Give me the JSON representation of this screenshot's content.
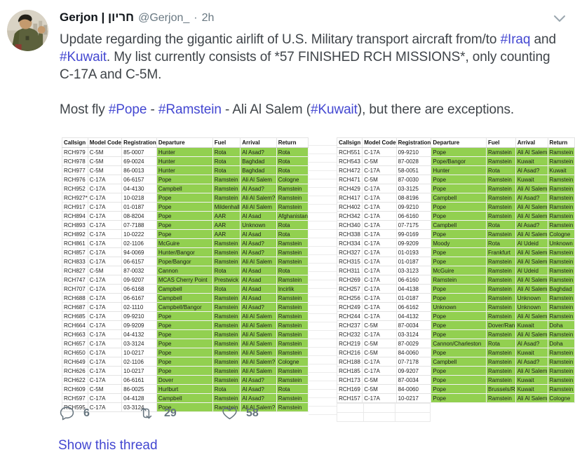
{
  "tweet": {
    "name": "Gerjon | חריון",
    "handle": "@Gerjon_",
    "separator": "·",
    "time": "2h",
    "paragraphs": [
      [
        {
          "text": "Update regarding the gigantic airlift of U.S. Military transport aircraft from/to "
        },
        {
          "text": "#Iraq",
          "link": true
        },
        {
          "text": " and "
        },
        {
          "text": "#Kuwait",
          "link": true
        },
        {
          "text": ". My list currently consists of *57 FINISHED RCH MISSIONS*, only counting C-17A and C-5M."
        }
      ],
      [
        {
          "text": "Most fly "
        },
        {
          "text": "#Pope",
          "link": true
        },
        {
          "text": " - "
        },
        {
          "text": "#Ramstein",
          "link": true
        },
        {
          "text": " - Ali Al Salem ("
        },
        {
          "text": "#Kuwait",
          "link": true
        },
        {
          "text": "), but there are exceptions."
        }
      ]
    ]
  },
  "table": {
    "headers": [
      "Callsign",
      "Model Code",
      "Registration",
      "Departure",
      "Fuel",
      "Arrival",
      "Return"
    ],
    "highlight_color": "#92d050",
    "left_rows": [
      [
        "RCH979",
        "C-5M",
        "85-0007",
        "Hunter",
        "Rota",
        "Al Asad?",
        "Rota"
      ],
      [
        "RCH978",
        "C-5M",
        "69-0024",
        "Hunter",
        "Rota",
        "Baghdad",
        "Rota"
      ],
      [
        "RCH977",
        "C-5M",
        "86-0013",
        "Hunter",
        "Rota",
        "Baghdad",
        "Rota"
      ],
      [
        "RCH976",
        "C-17A",
        "06-6157",
        "Pope",
        "Ramstein",
        "Ali Al Salem",
        "Cologne"
      ],
      [
        "RCH952",
        "C-17A",
        "04-4130",
        "Campbell",
        "Ramstein",
        "Al Asad?",
        "Ramstein"
      ],
      [
        "RCH927*",
        "C-17A",
        "10-0218",
        "Pope",
        "Ramstein",
        "Ali Al Salem?",
        "Ramstein"
      ],
      [
        "RCH917",
        "C-17A",
        "01-0187",
        "Pope",
        "Mildenhall",
        "Ali Al Salem",
        "Ramstein"
      ],
      [
        "RCH894",
        "C-17A",
        "08-8204",
        "Pope",
        "AAR",
        "Al Asad",
        "Afghanistan"
      ],
      [
        "RCH893",
        "C-17A",
        "07-7188",
        "Pope",
        "AAR",
        "Unknown",
        "Rota"
      ],
      [
        "RCH892",
        "C-17A",
        "10-0222",
        "Pope",
        "AAR",
        "Al Asad",
        "Rota"
      ],
      [
        "RCH861",
        "C-17A",
        "02-1106",
        "McGuire",
        "Ramstein",
        "Al Asad?",
        "Ramstein"
      ],
      [
        "RCH857",
        "C-17A",
        "94-0069",
        "Hunter/Bangor",
        "Ramstein",
        "Al Asad?",
        "Ramstein"
      ],
      [
        "RCH833",
        "C-17A",
        "06-6157",
        "Pope/Bangor",
        "Ramstein",
        "Ali Al Salem",
        "Ramstein"
      ],
      [
        "RCH827",
        "C-5M",
        "87-0032",
        "Cannon",
        "Rota",
        "Al Asad",
        "Rota"
      ],
      [
        "RCH747",
        "C-17A",
        "09-9207",
        "MCAS Cherry Point",
        "Prestwick",
        "Al Asad",
        "Ramstein"
      ],
      [
        "RCH707",
        "C-17A",
        "06-6168",
        "Campbell",
        "Rota",
        "Al Asad",
        "Incirlik"
      ],
      [
        "RCH688",
        "C-17A",
        "06-6167",
        "Campbell",
        "Ramstein",
        "Al Asad",
        "Ramstein"
      ],
      [
        "RCH687",
        "C-17A",
        "02-1110",
        "Campbell/Bangor",
        "Ramstein",
        "Al Asad?",
        "Ramstein"
      ],
      [
        "RCH685",
        "C-17A",
        "09-9210",
        "Pope",
        "Ramstein",
        "Ali Al Salem",
        "Ramstein"
      ],
      [
        "RCH664",
        "C-17A",
        "09-9209",
        "Pope",
        "Ramstein",
        "Ali Al Salem",
        "Ramstein"
      ],
      [
        "RCH663",
        "C-17A",
        "04-4132",
        "Pope",
        "Ramstein",
        "Ali Al Salem",
        "Ramstein"
      ],
      [
        "RCH657",
        "C-17A",
        "03-3124",
        "Pope",
        "Ramstein",
        "Ali Al Salem",
        "Ramstein"
      ],
      [
        "RCH650",
        "C-17A",
        "10-0217",
        "Pope",
        "Ramstein",
        "Ali Al Salem",
        "Ramstein"
      ],
      [
        "RCH649",
        "C-17A",
        "02-1106",
        "Pope",
        "Ramstein",
        "Ali Al Salem?",
        "Cologne"
      ],
      [
        "RCH626",
        "C-17A",
        "10-0217",
        "Pope",
        "Ramstein",
        "Ali Al Salem",
        "Ramstein"
      ],
      [
        "RCH622",
        "C-17A",
        "06-6161",
        "Dover",
        "Ramstein",
        "Al Asad?",
        "Ramstein"
      ],
      [
        "RCH609",
        "C-5M",
        "86-0025",
        "Hurlburt",
        "Rota",
        "Al Asad?",
        "Rota"
      ],
      [
        "RCH597",
        "C-17A",
        "04-4128",
        "Campbell",
        "Ramstein",
        "Al Asad?",
        "Ramstein"
      ],
      [
        "RCH595",
        "C-17A",
        "03-3124",
        "Pope",
        "Ramstein",
        "Ali Al Salem?",
        "Ramstein"
      ]
    ],
    "right_rows": [
      [
        "RCH551",
        "C-17A",
        "09-9210",
        "Pope",
        "Ramstein",
        "Ali Al Salem",
        "Ramstein"
      ],
      [
        "RCH543",
        "C-5M",
        "87-0028",
        "Pope/Bangor",
        "Ramstein",
        "Kuwait",
        "Ramstein"
      ],
      [
        "RCH472",
        "C-17A",
        "58-0051",
        "Hunter",
        "Rota",
        "Al Asad?",
        "Kuwait"
      ],
      [
        "RCH471",
        "C-5M",
        "87-0030",
        "Pope",
        "Ramstein",
        "Kuwait",
        "Ramstein"
      ],
      [
        "RCH429",
        "C-17A",
        "03-3125",
        "Pope",
        "Ramstein",
        "Ali Al Salem",
        "Ramstein"
      ],
      [
        "RCH417",
        "C-17A",
        "08-8196",
        "Campbell",
        "Ramstein",
        "Al Asad?",
        "Ramstein"
      ],
      [
        "RCH402",
        "C-17A",
        "09-9210",
        "Pope",
        "Ramstein",
        "Ali Al Salem",
        "Ramstein"
      ],
      [
        "RCH342",
        "C-17A",
        "06-6160",
        "Pope",
        "Ramstein",
        "Ali Al Salem",
        "Ramstein"
      ],
      [
        "RCH340",
        "C-17A",
        "07-7175",
        "Campbell",
        "Rota",
        "Al Asad?",
        "Ramstein"
      ],
      [
        "RCH338",
        "C-17A",
        "99-0169",
        "Pope",
        "Ramstein",
        "Ali Al Salem",
        "Cologne"
      ],
      [
        "RCH334",
        "C-17A",
        "09-9209",
        "Moody",
        "Rota",
        "Al Udeid",
        "Unknown"
      ],
      [
        "RCH327",
        "C-17A",
        "01-0193",
        "Pope",
        "Frankfurt",
        "Ali Al Salem",
        "Ramstein"
      ],
      [
        "RCH315",
        "C-17A",
        "01-0187",
        "Pope",
        "Ramstein",
        "Ali Al Salem",
        "Ramstein"
      ],
      [
        "RCH311",
        "C-17A",
        "03-3123",
        "McGuire",
        "Ramstein",
        "Al Udeid",
        "Ramstein"
      ],
      [
        "RCH269",
        "C-17A",
        "06-6160",
        "Ramstein",
        "Ramstein",
        "Ali Al Salem",
        "Ramstein"
      ],
      [
        "RCH257",
        "C-17A",
        "04-4138",
        "Pope",
        "Ramstein",
        "Ali Al Salem",
        "Baghdad"
      ],
      [
        "RCH256",
        "C-17A",
        "01-0187",
        "Pope",
        "Ramstein",
        "Unknown",
        "Ramstein"
      ],
      [
        "RCH249",
        "C-17A",
        "06-6162",
        "Unknown",
        "Ramstein",
        "Unknown",
        "Ramstein"
      ],
      [
        "RCH244",
        "C-17A",
        "04-4132",
        "Pope",
        "Ramstein",
        "Ali Al Salem",
        "Ramstein"
      ],
      [
        "RCH237",
        "C-5M",
        "87-0034",
        "Pope",
        "Dover/Ran",
        "Kuwait",
        "Doha"
      ],
      [
        "RCH232",
        "C-17A",
        "03-3124",
        "Pope",
        "Ramstein",
        "Ali Al Salem",
        "Ramstein"
      ],
      [
        "RCH219",
        "C-5M",
        "87-0029",
        "Cannon/Charleston",
        "Rota",
        "Al Asad?",
        "Doha"
      ],
      [
        "RCH216",
        "C-5M",
        "84-0060",
        "Pope",
        "Ramstein",
        "Kuwait",
        "Ramstein"
      ],
      [
        "RCH188",
        "C-17A",
        "07-7178",
        "Campbell",
        "Ramstein",
        "Al Asad?",
        "Ramstein"
      ],
      [
        "RCH185",
        "C-17A",
        "09-9207",
        "Pope",
        "Ramstein",
        "Ali Al Salem",
        "Ramstein"
      ],
      [
        "RCH173",
        "C-5M",
        "87-0034",
        "Pope",
        "Ramstein",
        "Kuwait",
        "Ramstein"
      ],
      [
        "RCH169",
        "C-5M",
        "84-0060",
        "Pope",
        "Brussels/R",
        "Kuwait",
        "Ramstein"
      ],
      [
        "RCH157",
        "C-17A",
        "10-0217",
        "Pope",
        "Ramstein",
        "Ali Al Salem",
        "Cologne"
      ]
    ]
  },
  "engagement": {
    "replies": "6",
    "retweets": "29",
    "likes": "58"
  },
  "show_thread_label": "Show this thread",
  "colors": {
    "link": "#4347d1",
    "highlight": "#92d050",
    "muted": "#697882",
    "icon": "#67757f"
  }
}
